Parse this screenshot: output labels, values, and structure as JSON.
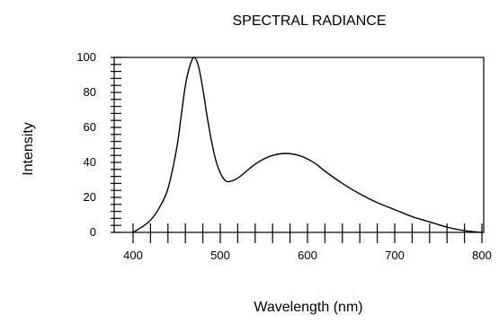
{
  "chart_data": {
    "type": "line",
    "title": "SPECTRAL RADIANCE",
    "xlabel": "Wavelength (nm)",
    "ylabel": "Intensity",
    "xlim": [
      400,
      800
    ],
    "ylim": [
      0,
      100
    ],
    "x_ticks": [
      400,
      500,
      600,
      700,
      800
    ],
    "y_ticks": [
      0,
      20,
      40,
      60,
      80,
      100
    ],
    "x_minor_step": 20,
    "y_minor_step": 4,
    "grid": false,
    "series": [
      {
        "x": [
          400,
          410,
          420,
          430,
          440,
          450,
          455,
          460,
          465,
          470,
          475,
          480,
          485,
          490,
          495,
          500,
          505,
          510,
          520,
          530,
          540,
          550,
          560,
          570,
          580,
          590,
          600,
          610,
          620,
          640,
          660,
          680,
          700,
          720,
          740,
          760,
          780,
          800
        ],
        "y": [
          0,
          3,
          7,
          14,
          25,
          48,
          66,
          84,
          95,
          100,
          95,
          82,
          66,
          52,
          41,
          34,
          30,
          29,
          31,
          35,
          39,
          42,
          44,
          45,
          45,
          44,
          42,
          39,
          35,
          28,
          22,
          17,
          13,
          9,
          6,
          3,
          1,
          0
        ]
      }
    ]
  }
}
